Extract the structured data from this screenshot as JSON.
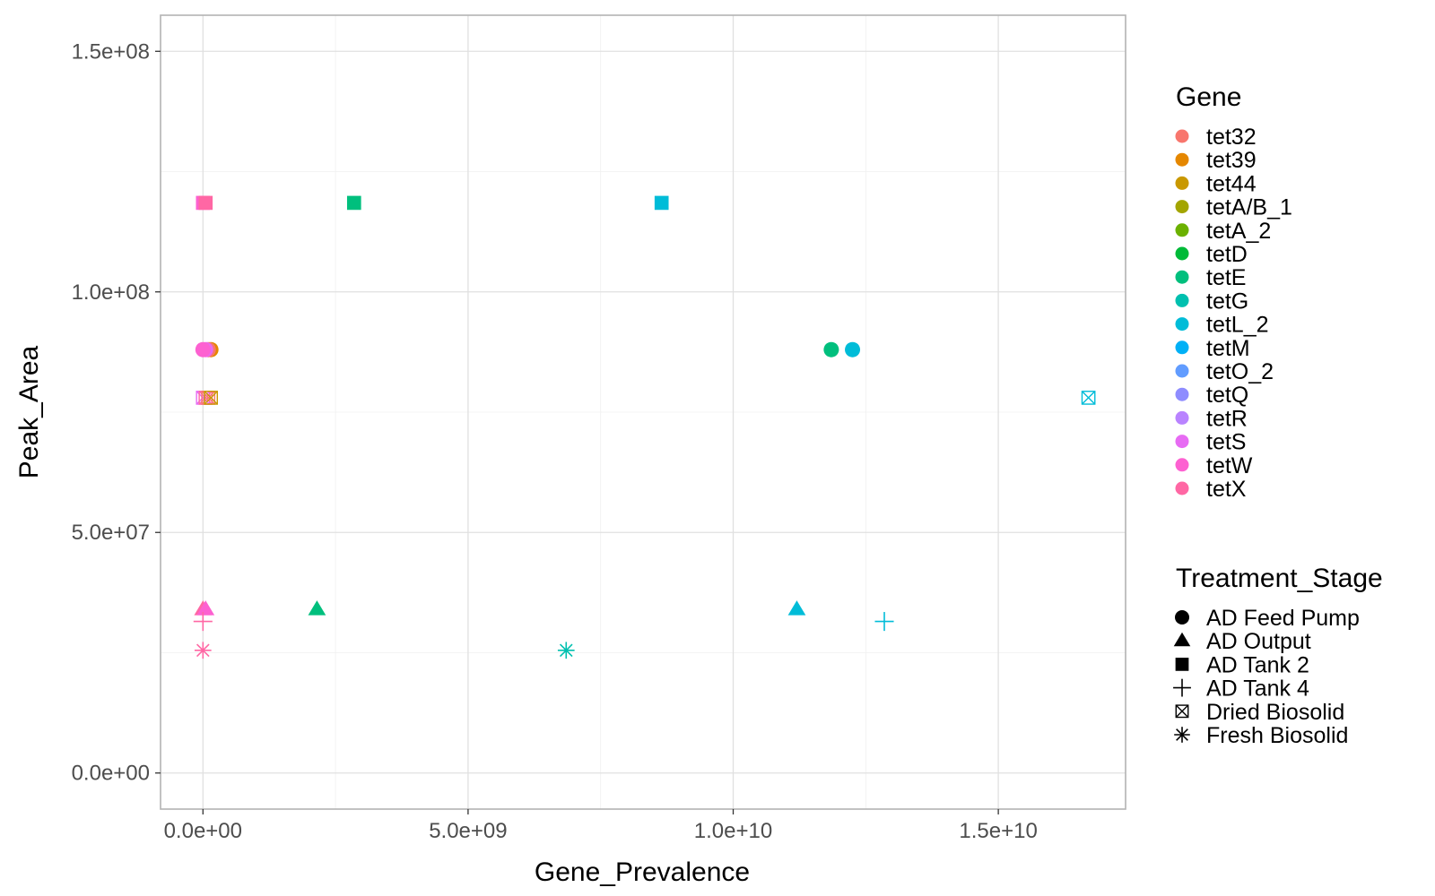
{
  "chart_data": {
    "type": "scatter",
    "title": "",
    "xlabel": "Gene_Prevalence",
    "ylabel": "Peak_Area",
    "xlim": [
      -800000000,
      17400000000
    ],
    "ylim": [
      -7500000,
      157500000
    ],
    "x_ticks": [
      0,
      5000000000,
      10000000000,
      15000000000
    ],
    "x_tick_labels": [
      "0.0e+00",
      "5.0e+09",
      "1.0e+10",
      "1.5e+10"
    ],
    "y_ticks": [
      0,
      50000000,
      100000000,
      150000000
    ],
    "y_tick_labels": [
      "0.0e+00",
      "5.0e+07",
      "1.0e+08",
      "1.5e+08"
    ],
    "grid": true,
    "legend_position": "right",
    "color_legend": {
      "title": "Gene",
      "entries": [
        {
          "name": "tet32",
          "color": "#F8766D"
        },
        {
          "name": "tet39",
          "color": "#E58700"
        },
        {
          "name": "tet44",
          "color": "#C99800"
        },
        {
          "name": "tetA/B_1",
          "color": "#A3A500"
        },
        {
          "name": "tetA_2",
          "color": "#6BB100"
        },
        {
          "name": "tetD",
          "color": "#00BA38"
        },
        {
          "name": "tetE",
          "color": "#00BF7D"
        },
        {
          "name": "tetG",
          "color": "#00C0AF"
        },
        {
          "name": "tetL_2",
          "color": "#00BCD8"
        },
        {
          "name": "tetM",
          "color": "#00B0F6"
        },
        {
          "name": "tetO_2",
          "color": "#619CFF"
        },
        {
          "name": "tetQ",
          "color": "#8E8CFF"
        },
        {
          "name": "tetR",
          "color": "#B983FF"
        },
        {
          "name": "tetS",
          "color": "#E76BF3"
        },
        {
          "name": "tetW",
          "color": "#FD61D1"
        },
        {
          "name": "tetX",
          "color": "#FF67A4"
        }
      ]
    },
    "shape_legend": {
      "title": "Treatment_Stage",
      "entries": [
        {
          "name": "AD Feed Pump",
          "shape": "circle"
        },
        {
          "name": "AD Output",
          "shape": "triangle"
        },
        {
          "name": "AD Tank 2",
          "shape": "square"
        },
        {
          "name": "AD Tank 4",
          "shape": "plus"
        },
        {
          "name": "Dried Biosolid",
          "shape": "square-cross"
        },
        {
          "name": "Fresh Biosolid",
          "shape": "asterisk"
        }
      ]
    },
    "points": [
      {
        "x": 150000000,
        "y": 88000000,
        "gene": "tet39",
        "stage": "AD Feed Pump"
      },
      {
        "x": 100000000,
        "y": 88000000,
        "gene": "tet32",
        "stage": "AD Feed Pump"
      },
      {
        "x": 50000000,
        "y": 88000000,
        "gene": "tetS",
        "stage": "AD Feed Pump"
      },
      {
        "x": 0,
        "y": 88000000,
        "gene": "tetW",
        "stage": "AD Feed Pump"
      },
      {
        "x": 11850000000,
        "y": 88000000,
        "gene": "tetE",
        "stage": "AD Feed Pump"
      },
      {
        "x": 12250000000,
        "y": 88000000,
        "gene": "tetL_2",
        "stage": "AD Feed Pump"
      },
      {
        "x": 0,
        "y": 34000000,
        "gene": "tetX",
        "stage": "AD Output"
      },
      {
        "x": 50000000,
        "y": 34000000,
        "gene": "tetW",
        "stage": "AD Output"
      },
      {
        "x": 2150000000,
        "y": 34000000,
        "gene": "tetE",
        "stage": "AD Output"
      },
      {
        "x": 11200000000,
        "y": 34000000,
        "gene": "tetL_2",
        "stage": "AD Output"
      },
      {
        "x": 0,
        "y": 118500000,
        "gene": "tetW",
        "stage": "AD Tank 2"
      },
      {
        "x": 50000000,
        "y": 118500000,
        "gene": "tetX",
        "stage": "AD Tank 2"
      },
      {
        "x": 2850000000,
        "y": 118500000,
        "gene": "tetE",
        "stage": "AD Tank 2"
      },
      {
        "x": 8650000000,
        "y": 118500000,
        "gene": "tetL_2",
        "stage": "AD Tank 2"
      },
      {
        "x": 0,
        "y": 31500000,
        "gene": "tetX",
        "stage": "AD Tank 4"
      },
      {
        "x": 12850000000,
        "y": 31500000,
        "gene": "tetL_2",
        "stage": "AD Tank 4"
      },
      {
        "x": 0,
        "y": 78000000,
        "gene": "tetS",
        "stage": "Dried Biosolid"
      },
      {
        "x": 50000000,
        "y": 78000000,
        "gene": "tetX",
        "stage": "Dried Biosolid"
      },
      {
        "x": 100000000,
        "y": 78000000,
        "gene": "tet32",
        "stage": "Dried Biosolid"
      },
      {
        "x": 150000000,
        "y": 78000000,
        "gene": "tet44",
        "stage": "Dried Biosolid"
      },
      {
        "x": 16700000000,
        "y": 78000000,
        "gene": "tetL_2",
        "stage": "Dried Biosolid"
      },
      {
        "x": 0,
        "y": 25500000,
        "gene": "tetX",
        "stage": "Fresh Biosolid"
      },
      {
        "x": 6850000000,
        "y": 25500000,
        "gene": "tetG",
        "stage": "Fresh Biosolid"
      }
    ]
  }
}
